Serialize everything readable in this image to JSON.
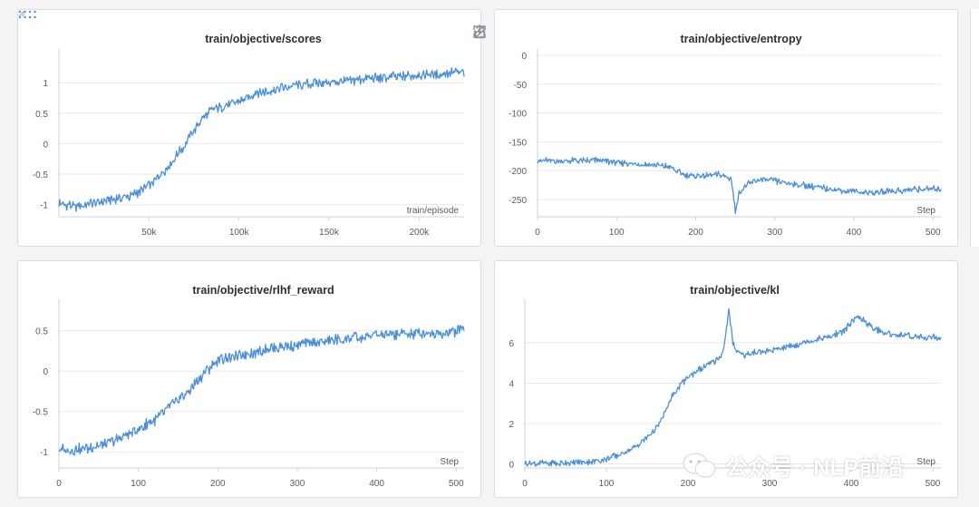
{
  "colors": {
    "line": "#4a90d9",
    "grid": "#e8e8ec",
    "text": "#555b66",
    "title": "#2b2f36"
  },
  "toolbar": {
    "icons": [
      "share-icon",
      "edit-icon",
      "fullscreen-icon",
      "more-icon"
    ]
  },
  "watermark": {
    "text": "公众号 · NLP前沿"
  },
  "chart_data": [
    {
      "type": "line",
      "title": "train/objective/scores",
      "xlabel": "train/episode",
      "xlim": [
        0,
        225000
      ],
      "ylim": [
        -1.2,
        1.45
      ],
      "xticks": [
        50000,
        100000,
        150000,
        200000
      ],
      "xtick_labels": [
        "50k",
        "100k",
        "150k",
        "200k"
      ],
      "yticks": [
        -1,
        -0.5,
        0,
        0.5,
        1
      ],
      "ytick_labels": [
        "-1",
        "-0.5",
        "0",
        "0.5",
        "1"
      ],
      "series": [
        {
          "name": "scores",
          "x": [
            0,
            10000,
            20000,
            30000,
            40000,
            45000,
            50000,
            55000,
            60000,
            65000,
            70000,
            75000,
            80000,
            85000,
            90000,
            95000,
            100000,
            105000,
            110000,
            115000,
            120000,
            125000,
            130000,
            140000,
            150000,
            160000,
            170000,
            180000,
            190000,
            200000,
            210000,
            220000,
            225000
          ],
          "values": [
            -0.98,
            -1.02,
            -0.97,
            -0.92,
            -0.85,
            -0.78,
            -0.68,
            -0.55,
            -0.4,
            -0.22,
            0.0,
            0.22,
            0.42,
            0.55,
            0.6,
            0.64,
            0.7,
            0.75,
            0.85,
            0.86,
            0.88,
            0.92,
            0.95,
            0.98,
            1.0,
            1.03,
            1.06,
            1.08,
            1.1,
            1.12,
            1.14,
            1.16,
            1.17
          ]
        }
      ]
    },
    {
      "type": "line",
      "title": "train/objective/entropy",
      "xlabel": "Step",
      "xlim": [
        0,
        510
      ],
      "ylim": [
        -280,
        0
      ],
      "xticks": [
        0,
        100,
        200,
        300,
        400,
        500
      ],
      "xtick_labels": [
        "0",
        "100",
        "200",
        "300",
        "400",
        "500"
      ],
      "yticks": [
        0,
        -50,
        -100,
        -150,
        -200,
        -250
      ],
      "ytick_labels": [
        "0",
        "-50",
        "-100",
        "-150",
        "-200",
        "-250"
      ],
      "series": [
        {
          "name": "entropy",
          "x": [
            0,
            25,
            50,
            75,
            100,
            125,
            150,
            170,
            185,
            200,
            215,
            230,
            245,
            250,
            255,
            265,
            280,
            300,
            320,
            340,
            360,
            380,
            400,
            420,
            440,
            460,
            480,
            500,
            510
          ],
          "values": [
            -182,
            -184,
            -183,
            -182,
            -186,
            -188,
            -190,
            -195,
            -208,
            -210,
            -208,
            -206,
            -214,
            -270,
            -238,
            -224,
            -216,
            -218,
            -222,
            -226,
            -230,
            -234,
            -236,
            -238,
            -236,
            -234,
            -233,
            -232,
            -232
          ]
        }
      ]
    },
    {
      "type": "line",
      "title": "train/objective/rlhf_reward",
      "xlabel": "Step",
      "xlim": [
        0,
        510
      ],
      "ylim": [
        -1.2,
        0.8
      ],
      "xticks": [
        0,
        100,
        200,
        300,
        400,
        500
      ],
      "xtick_labels": [
        "0",
        "100",
        "200",
        "300",
        "400",
        "500"
      ],
      "yticks": [
        -1,
        -0.5,
        0,
        0.5
      ],
      "ytick_labels": [
        "-1",
        "-0.5",
        "0",
        "0.5"
      ],
      "series": [
        {
          "name": "rlhf_reward",
          "x": [
            0,
            20,
            40,
            60,
            80,
            100,
            120,
            140,
            160,
            180,
            200,
            220,
            240,
            260,
            280,
            300,
            320,
            340,
            360,
            380,
            400,
            420,
            440,
            460,
            480,
            500,
            510
          ],
          "values": [
            -0.98,
            -0.98,
            -0.94,
            -0.9,
            -0.82,
            -0.72,
            -0.6,
            -0.45,
            -0.28,
            -0.05,
            0.15,
            0.18,
            0.22,
            0.28,
            0.3,
            0.32,
            0.35,
            0.38,
            0.4,
            0.42,
            0.44,
            0.45,
            0.46,
            0.47,
            0.48,
            0.5,
            0.52
          ]
        }
      ]
    },
    {
      "type": "line",
      "title": "train/objective/kl",
      "xlabel": "Step",
      "xlim": [
        0,
        510
      ],
      "ylim": [
        -0.2,
        7.8
      ],
      "xticks": [
        0,
        100,
        200,
        300,
        400,
        500
      ],
      "xtick_labels": [
        "0",
        "100",
        "200",
        "300",
        "400",
        "500"
      ],
      "yticks": [
        0,
        2,
        4,
        6
      ],
      "ytick_labels": [
        "0",
        "2",
        "4",
        "6"
      ],
      "series": [
        {
          "name": "kl",
          "x": [
            0,
            40,
            80,
            100,
            120,
            140,
            160,
            170,
            180,
            190,
            200,
            210,
            220,
            230,
            240,
            245,
            250,
            255,
            260,
            270,
            280,
            300,
            320,
            340,
            360,
            380,
            390,
            400,
            410,
            420,
            440,
            460,
            480,
            500,
            510
          ],
          "values": [
            0.0,
            0.05,
            0.1,
            0.25,
            0.5,
            1.0,
            1.7,
            2.4,
            3.3,
            3.9,
            4.3,
            4.6,
            4.8,
            5.0,
            5.3,
            6.0,
            7.6,
            6.0,
            5.6,
            5.4,
            5.5,
            5.6,
            5.8,
            6.0,
            6.2,
            6.4,
            6.6,
            7.0,
            7.3,
            6.9,
            6.5,
            6.4,
            6.3,
            6.3,
            6.2
          ]
        }
      ]
    }
  ]
}
